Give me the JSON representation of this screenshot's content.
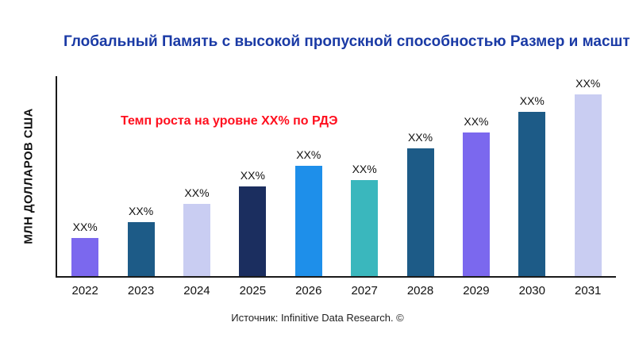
{
  "title": "Глобальный Память с высокой пропускной способностью Размер и масшт",
  "ylabel": "МЛН ДОЛЛАРОВ США",
  "annotation": {
    "text": "Темп роста на уровне XX% по РДЭ",
    "color": "#ff0f1e"
  },
  "source": "Источник: Infinitive Data Research. ©",
  "colors": {
    "title": "#1a3aa5",
    "axis": "#1a1a1a"
  },
  "chart_data": {
    "type": "bar",
    "title": "Глобальный Память с высокой пропускной способностью Размер и масшт",
    "xlabel": "",
    "ylabel": "МЛН ДОЛЛАРОВ США",
    "categories": [
      "2022",
      "2023",
      "2024",
      "2025",
      "2026",
      "2027",
      "2028",
      "2029",
      "2030",
      "2031"
    ],
    "values": [
      19,
      27,
      36,
      45,
      55,
      48,
      64,
      72,
      82,
      91
    ],
    "bar_labels": [
      "XX%",
      "XX%",
      "XX%",
      "XX%",
      "XX%",
      "XX%",
      "XX%",
      "XX%",
      "XX%",
      "XX%"
    ],
    "bar_colors": [
      "#7b68ee",
      "#1d5b87",
      "#c9cdf2",
      "#1b2e5f",
      "#1e8fea",
      "#3ab7bd",
      "#1d5b87",
      "#7b68ee",
      "#1d5b87",
      "#c9cdf2"
    ],
    "ylim": [
      0,
      100
    ],
    "grid": false,
    "legend": false,
    "annotation": "Темп роста на уровне XX% по РДЭ"
  }
}
